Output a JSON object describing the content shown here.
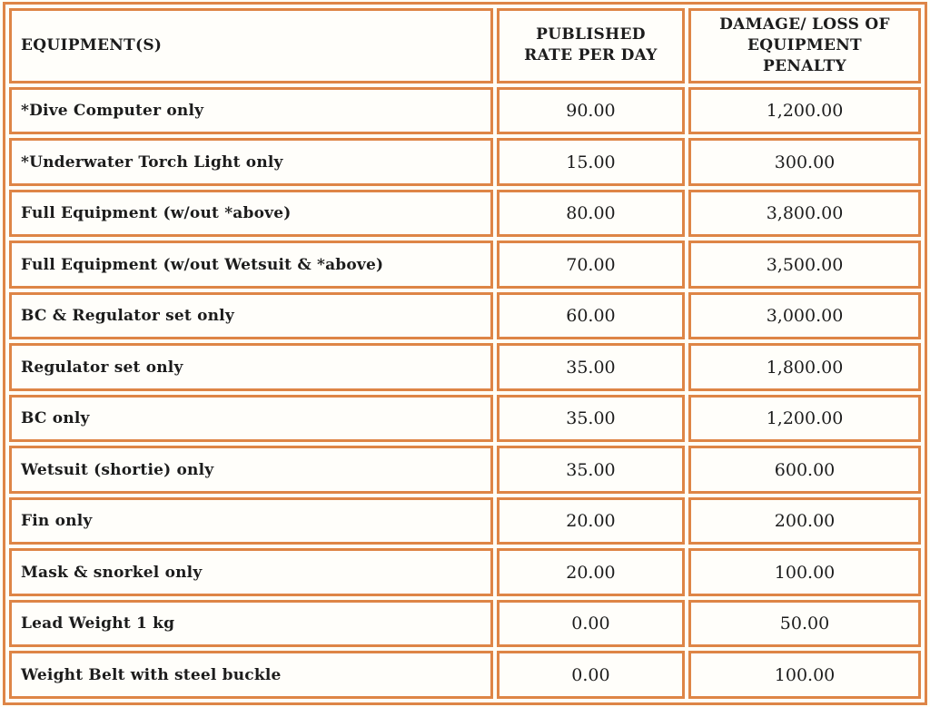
{
  "table": {
    "colors": {
      "border": "#DE8546",
      "cell_bg": "#FFFEFA",
      "page_bg": "#FFFEF6",
      "text": "#1C1C1C"
    },
    "columns": [
      {
        "label": "EQUIPMENT(S)"
      },
      {
        "label": "PUBLISHED RATE PER DAY"
      },
      {
        "label": "DAMAGE/ LOSS OF EQUIPMENT PENALTY"
      }
    ],
    "rows": [
      {
        "equipment": "*Dive Computer only",
        "rate": "90.00",
        "penalty": "1,200.00"
      },
      {
        "equipment": "*Underwater Torch Light only",
        "rate": "15.00",
        "penalty": "300.00"
      },
      {
        "equipment": "Full Equipment (w/out *above)",
        "rate": "80.00",
        "penalty": "3,800.00"
      },
      {
        "equipment": "Full Equipment (w/out Wetsuit & *above)",
        "rate": "70.00",
        "penalty": "3,500.00"
      },
      {
        "equipment": "BC & Regulator set only",
        "rate": "60.00",
        "penalty": "3,000.00"
      },
      {
        "equipment": "Regulator set only",
        "rate": "35.00",
        "penalty": "1,800.00"
      },
      {
        "equipment": "BC only",
        "rate": "35.00",
        "penalty": "1,200.00"
      },
      {
        "equipment": "Wetsuit (shortie) only",
        "rate": "35.00",
        "penalty": "600.00"
      },
      {
        "equipment": "Fin only",
        "rate": "20.00",
        "penalty": "200.00"
      },
      {
        "equipment": "Mask & snorkel only",
        "rate": "20.00",
        "penalty": "100.00"
      },
      {
        "equipment": "Lead Weight 1 kg",
        "rate": "0.00",
        "penalty": "50.00"
      },
      {
        "equipment": "Weight Belt with steel buckle",
        "rate": "0.00",
        "penalty": "100.00"
      }
    ]
  }
}
